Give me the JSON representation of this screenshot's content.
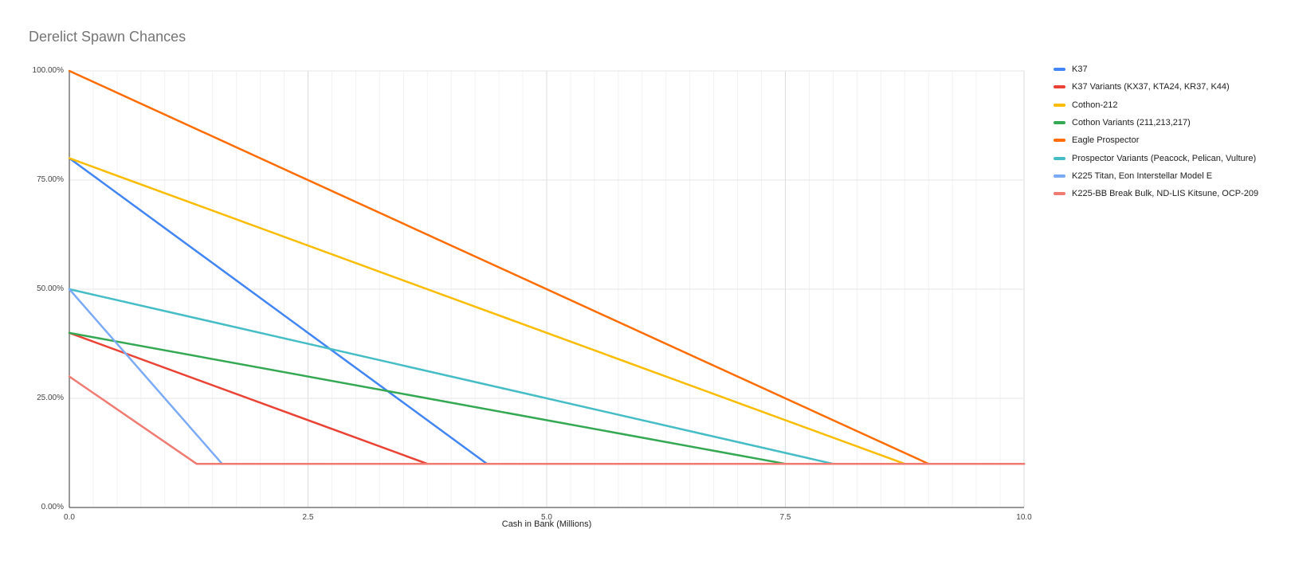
{
  "title": "Derelict Spawn Chances",
  "chart_data": {
    "type": "line",
    "title": "Derelict Spawn Chances",
    "xlabel": "Cash in Bank (Millions)",
    "ylabel": "",
    "xlim": [
      0,
      10
    ],
    "ylim": [
      0,
      100
    ],
    "x_minor_step": 0.25,
    "x_major_step": 2.5,
    "grid": true,
    "legend_position": "right",
    "x_ticks": [
      {
        "value": 0,
        "label": "0.0"
      },
      {
        "value": 2.5,
        "label": "2.5"
      },
      {
        "value": 5,
        "label": "5.0"
      },
      {
        "value": 7.5,
        "label": "7.5"
      },
      {
        "value": 10,
        "label": "10.0"
      }
    ],
    "y_ticks": [
      {
        "value": 0,
        "label": "0.00%"
      },
      {
        "value": 25,
        "label": "25.00%"
      },
      {
        "value": 50,
        "label": "50.00%"
      },
      {
        "value": 75,
        "label": "75.00%"
      },
      {
        "value": 100,
        "label": "100.00%"
      }
    ],
    "floor_percent": 10,
    "series": [
      {
        "name": "K37",
        "color": "#4285F4",
        "points": [
          [
            0,
            80
          ],
          [
            4.375,
            10
          ],
          [
            10,
            10
          ]
        ]
      },
      {
        "name": "K37 Variants (KX37, KTA24, KR37, K44)",
        "color": "#EA4335",
        "points": [
          [
            0,
            40
          ],
          [
            3.75,
            10
          ],
          [
            10,
            10
          ]
        ]
      },
      {
        "name": "Cothon-212",
        "color": "#FBBC04",
        "points": [
          [
            0,
            80
          ],
          [
            8.75,
            10
          ],
          [
            10,
            10
          ]
        ]
      },
      {
        "name": "Cothon Variants (211,213,217)",
        "color": "#34A853",
        "points": [
          [
            0,
            40
          ],
          [
            7.5,
            10
          ],
          [
            10,
            10
          ]
        ]
      },
      {
        "name": "Eagle Prospector",
        "color": "#FF6D01",
        "points": [
          [
            0,
            100
          ],
          [
            9,
            10
          ],
          [
            10,
            10
          ]
        ]
      },
      {
        "name": "Prospector Variants (Peacock, Pelican, Vulture)",
        "color": "#46BDC6",
        "points": [
          [
            0,
            50
          ],
          [
            8,
            10
          ],
          [
            10,
            10
          ]
        ]
      },
      {
        "name": "K225 Titan, Eon Interstellar Model E",
        "color": "#7BAAF7",
        "points": [
          [
            0,
            50
          ],
          [
            1.6,
            10
          ],
          [
            10,
            10
          ]
        ]
      },
      {
        "name": "K225-BB Break Bulk, ND-LIS Kitsune, OCP-209",
        "color": "#F07B72",
        "points": [
          [
            0,
            30
          ],
          [
            1.3333,
            10
          ],
          [
            10,
            10
          ]
        ]
      }
    ],
    "colors": {
      "axis": "#333333",
      "grid_major_x": "#dcdcdc",
      "grid_minor_x": "#f2f2f2",
      "grid_y": "#e6e6e6",
      "title_text": "#757575",
      "tick_text": "#444444"
    }
  }
}
